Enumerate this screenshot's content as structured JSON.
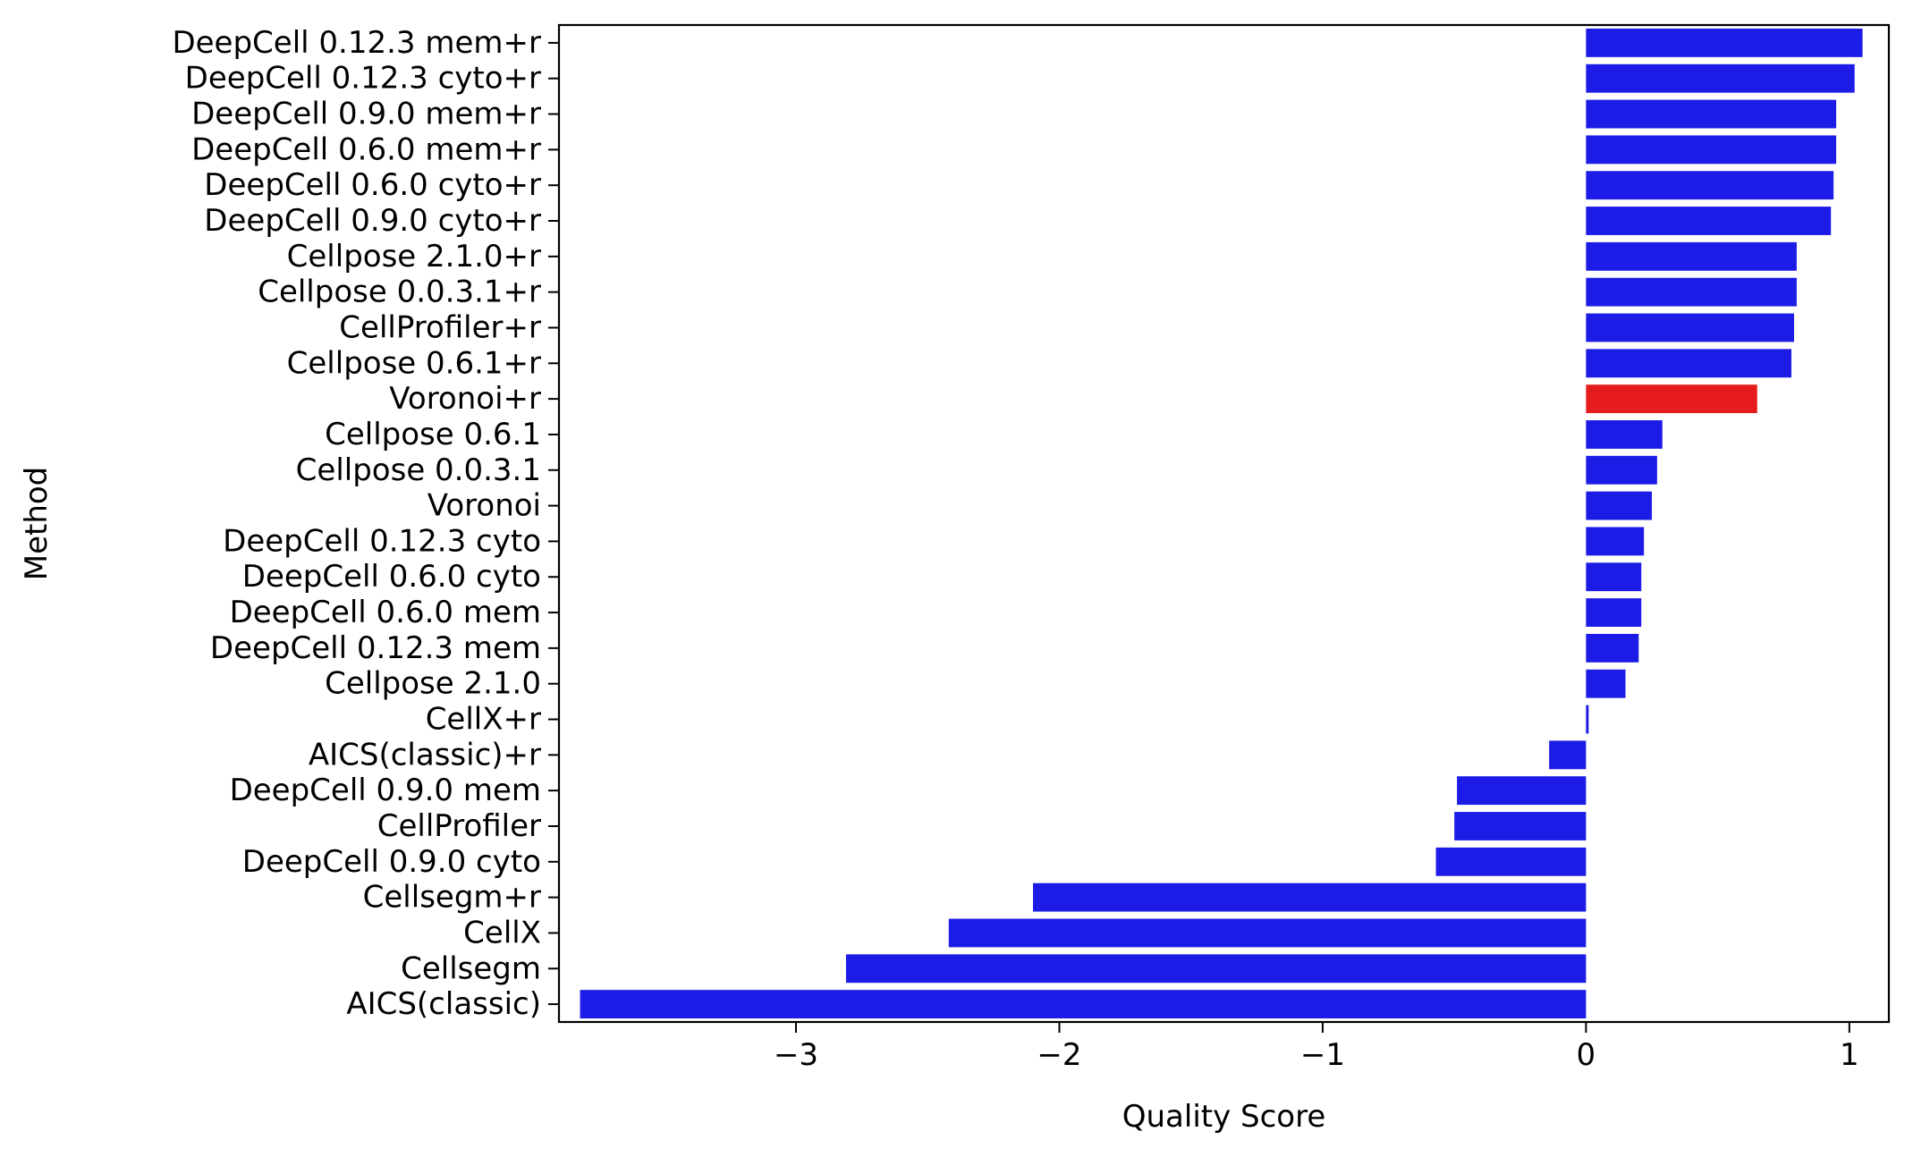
{
  "chart_data": {
    "type": "bar",
    "orientation": "horizontal",
    "xlabel": "Quality Score",
    "ylabel": "Method",
    "xlim": [
      -3.9,
      1.15
    ],
    "xticks": [
      -3,
      -2,
      -1,
      0,
      1
    ],
    "xtick_labels": [
      "−3",
      "−2",
      "−1",
      "0",
      "1"
    ],
    "grid": false,
    "colors": {
      "default": "#1c1ce6",
      "highlight": "#e61c1c"
    },
    "categories": [
      "DeepCell 0.12.3 mem+r",
      "DeepCell 0.12.3 cyto+r",
      "DeepCell 0.9.0 mem+r",
      "DeepCell 0.6.0 mem+r",
      "DeepCell 0.6.0 cyto+r",
      "DeepCell 0.9.0 cyto+r",
      "Cellpose 2.1.0+r",
      "Cellpose 0.0.3.1+r",
      "CellProfiler+r",
      "Cellpose 0.6.1+r",
      "Voronoi+r",
      "Cellpose 0.6.1",
      "Cellpose 0.0.3.1",
      "Voronoi",
      "DeepCell 0.12.3 cyto",
      "DeepCell 0.6.0 cyto",
      "DeepCell 0.6.0 mem",
      "DeepCell 0.12.3 mem",
      "Cellpose 2.1.0",
      "CellX+r",
      "AICS(classic)+r",
      "DeepCell 0.9.0 mem",
      "CellProfiler",
      "DeepCell 0.9.0 cyto",
      "Cellsegm+r",
      "CellX",
      "Cellsegm",
      "AICS(classic)"
    ],
    "values": [
      1.05,
      1.02,
      0.95,
      0.95,
      0.94,
      0.93,
      0.8,
      0.8,
      0.79,
      0.78,
      0.65,
      0.29,
      0.27,
      0.25,
      0.22,
      0.21,
      0.21,
      0.2,
      0.15,
      0.01,
      -0.14,
      -0.49,
      -0.5,
      -0.57,
      -2.1,
      -2.42,
      -2.81,
      -3.82
    ],
    "highlight": [
      "Voronoi+r"
    ]
  }
}
